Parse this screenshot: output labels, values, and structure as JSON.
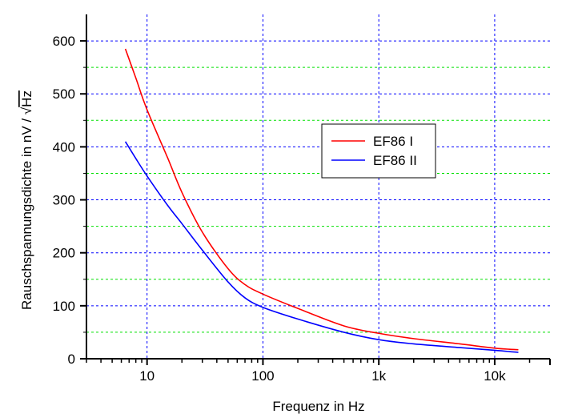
{
  "chart_data": {
    "type": "line",
    "title": "",
    "xlabel": "Frequenz in Hz",
    "ylabel_prefix": "Rauschspannungsdichte in  nV / ",
    "ylabel_sqrt": "Hz",
    "xscale": "log",
    "xlim": [
      3,
      30000
    ],
    "ylim": [
      0,
      650
    ],
    "x_ticks": [
      {
        "v": 10,
        "label": "10"
      },
      {
        "v": 100,
        "label": "100"
      },
      {
        "v": 1000,
        "label": "1k"
      },
      {
        "v": 10000,
        "label": "10k"
      }
    ],
    "y_ticks": [
      {
        "v": 0,
        "label": "0"
      },
      {
        "v": 100,
        "label": "100"
      },
      {
        "v": 200,
        "label": "200"
      },
      {
        "v": 300,
        "label": "300"
      },
      {
        "v": 400,
        "label": "400"
      },
      {
        "v": 500,
        "label": "500"
      },
      {
        "v": 600,
        "label": "600"
      }
    ],
    "y_minor_grid": [
      50,
      150,
      250,
      350,
      450,
      550
    ],
    "grid": true,
    "legend_position": "center-right",
    "series": [
      {
        "name": "EF86 I",
        "color": "#ff0000",
        "x": [
          6.5,
          8,
          10,
          15,
          20,
          30,
          50,
          70,
          100,
          200,
          500,
          1000,
          2000,
          5000,
          10000,
          16000
        ],
        "y": [
          585,
          530,
          470,
          380,
          314,
          239,
          170,
          140,
          122,
          95,
          62,
          48,
          38,
          28,
          20,
          17
        ]
      },
      {
        "name": "EF86 II",
        "color": "#0000ff",
        "x": [
          6.5,
          8,
          10,
          15,
          20,
          30,
          50,
          70,
          100,
          200,
          500,
          1000,
          2000,
          5000,
          10000,
          16000
        ],
        "y": [
          410,
          378,
          345,
          290,
          255,
          205,
          145,
          115,
          97,
          75,
          50,
          36,
          28,
          21,
          16,
          12
        ]
      }
    ]
  }
}
